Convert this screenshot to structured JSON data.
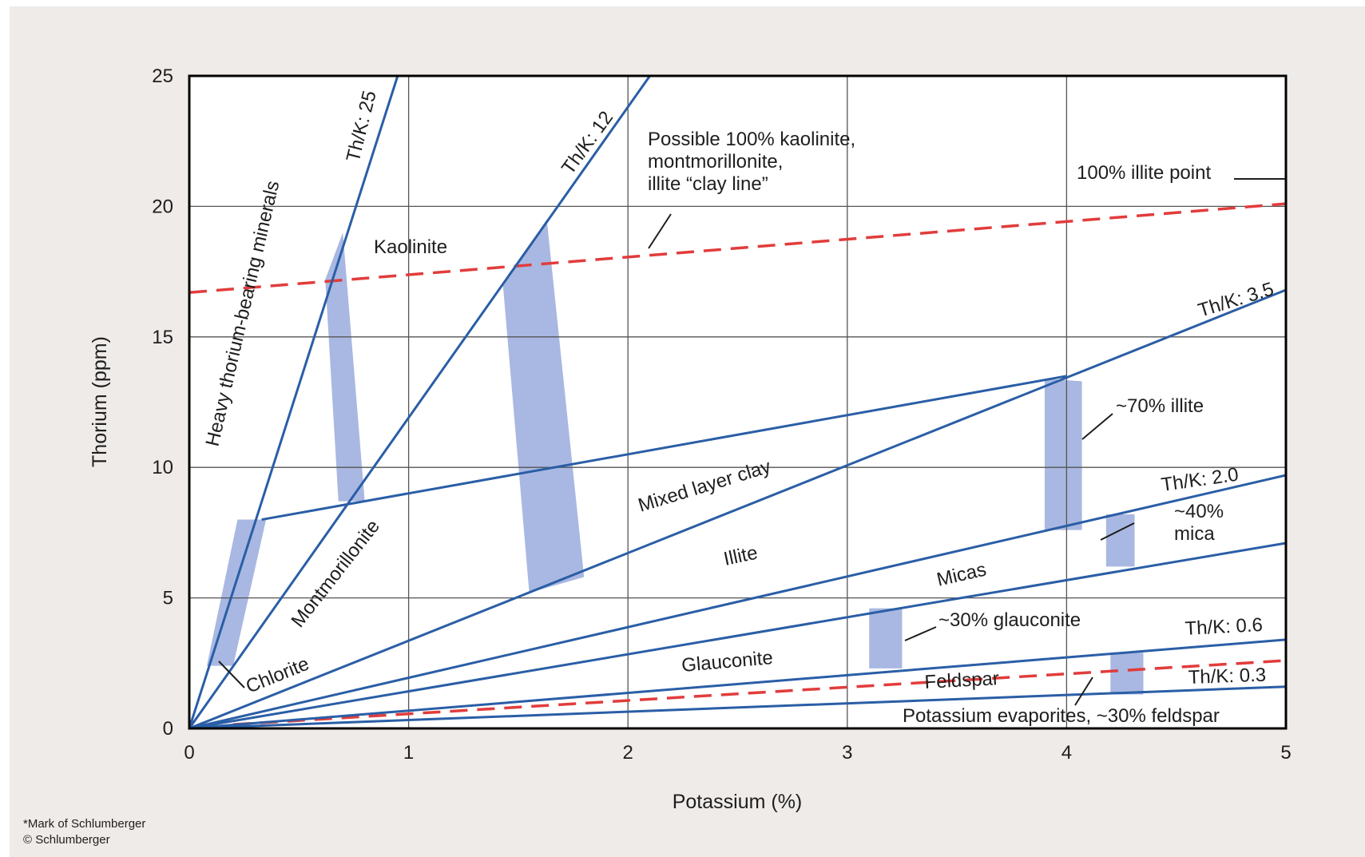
{
  "chart_data": {
    "type": "line",
    "xlabel": "Potassium (%)",
    "ylabel": "Thorium (ppm)",
    "xlim": [
      0,
      5
    ],
    "ylim": [
      0,
      25
    ],
    "xticks": [
      "0",
      "1",
      "2",
      "3",
      "4",
      "5"
    ],
    "yticks": [
      "0",
      "5",
      "10",
      "15",
      "20",
      "25"
    ],
    "grid": true,
    "ratio_lines": [
      {
        "label": "Th/K: 25",
        "points": [
          [
            0,
            0
          ],
          [
            0.95,
            25
          ]
        ]
      },
      {
        "label": "Th/K: 12",
        "points": [
          [
            0,
            0
          ],
          [
            2.1,
            25
          ]
        ]
      },
      {
        "label": "Th/K: 3.5",
        "points": [
          [
            0,
            0
          ],
          [
            5,
            16.8
          ]
        ]
      },
      {
        "label": "Th/K: 2.0",
        "points": [
          [
            0,
            0
          ],
          [
            5,
            9.7
          ]
        ]
      },
      {
        "label": "",
        "points": [
          [
            0,
            0
          ],
          [
            5,
            7.1
          ]
        ]
      },
      {
        "label": "Th/K: 0.6",
        "points": [
          [
            0,
            0
          ],
          [
            5,
            3.4
          ]
        ]
      },
      {
        "label": "Th/K: 0.3",
        "points": [
          [
            0,
            0
          ],
          [
            5,
            1.6
          ]
        ]
      },
      {
        "label": "",
        "points": [
          [
            0.33,
            8.0
          ],
          [
            4.0,
            13.5
          ]
        ]
      }
    ],
    "reference_lines": [
      {
        "label": "Possible 100% kaolinite, montmorillonite, illite “clay line”",
        "points": [
          [
            0,
            16.7
          ],
          [
            5,
            20.1
          ]
        ]
      },
      {
        "label": "",
        "points": [
          [
            0.2,
            0.15
          ],
          [
            5,
            2.6
          ]
        ]
      }
    ],
    "shaded_bands": [
      [
        [
          0.2,
          2.4
        ],
        [
          0.35,
          8.0
        ],
        [
          0.22,
          8.0
        ],
        [
          0.08,
          2.4
        ]
      ],
      [
        [
          0.7,
          19.0
        ],
        [
          0.8,
          8.7
        ],
        [
          0.68,
          8.7
        ],
        [
          0.62,
          17.2
        ]
      ],
      [
        [
          1.63,
          19.5
        ],
        [
          1.8,
          5.8
        ],
        [
          1.55,
          5.2
        ],
        [
          1.43,
          17.0
        ]
      ],
      [
        [
          3.9,
          13.4
        ],
        [
          4.07,
          13.3
        ],
        [
          4.07,
          7.6
        ],
        [
          3.9,
          7.6
        ]
      ],
      [
        [
          4.18,
          8.2
        ],
        [
          4.31,
          8.2
        ],
        [
          4.31,
          6.2
        ],
        [
          4.18,
          6.2
        ]
      ],
      [
        [
          3.1,
          4.6
        ],
        [
          3.25,
          4.6
        ],
        [
          3.25,
          2.3
        ],
        [
          3.1,
          2.3
        ]
      ],
      [
        [
          4.2,
          2.9
        ],
        [
          4.35,
          2.9
        ],
        [
          4.35,
          1.3
        ],
        [
          4.2,
          1.3
        ]
      ]
    ],
    "annotations": {
      "th_k_25": "Th/K: 25",
      "th_k_12": "Th/K: 12",
      "th_k_3_5": "Th/K: 3.5",
      "th_k_2_0": "Th/K: 2.0",
      "th_k_0_6": "Th/K: 0.6",
      "th_k_0_3": "Th/K: 0.3",
      "heavy_thorium": "Heavy thorium-bearing minerals",
      "kaolinite": "Kaolinite",
      "clay_line_1": "Possible 100% kaolinite,",
      "clay_line_2": "montmorillonite,",
      "clay_line_3": "illite “clay line”",
      "illite_point": "100% illite point",
      "montmorillonite": "Montmorillonite",
      "mixed_layer_clay": "Mixed layer clay",
      "illite": "Illite",
      "illite_70": "~70% illite",
      "mica_40_1": "~40%",
      "mica_40_2": "mica",
      "micas": "Micas",
      "glauconite_30": "~30% glauconite",
      "glauconite": "Glauconite",
      "chlorite": "Chlorite",
      "feldspar": "Feldspar",
      "evaporites": "Potassium evaporites, ~30% feldspar"
    }
  },
  "footer": {
    "trademark": "*Mark of Schlumberger",
    "copyright": "© Schlumberger"
  },
  "colors": {
    "background": "#efebe9",
    "plot_area": "#ffffff",
    "ratio_line": "#2a5ea6",
    "clay_line": "#e23c3c",
    "band": "#a9b8e2",
    "grid": "#555555",
    "frame": "#000000"
  }
}
